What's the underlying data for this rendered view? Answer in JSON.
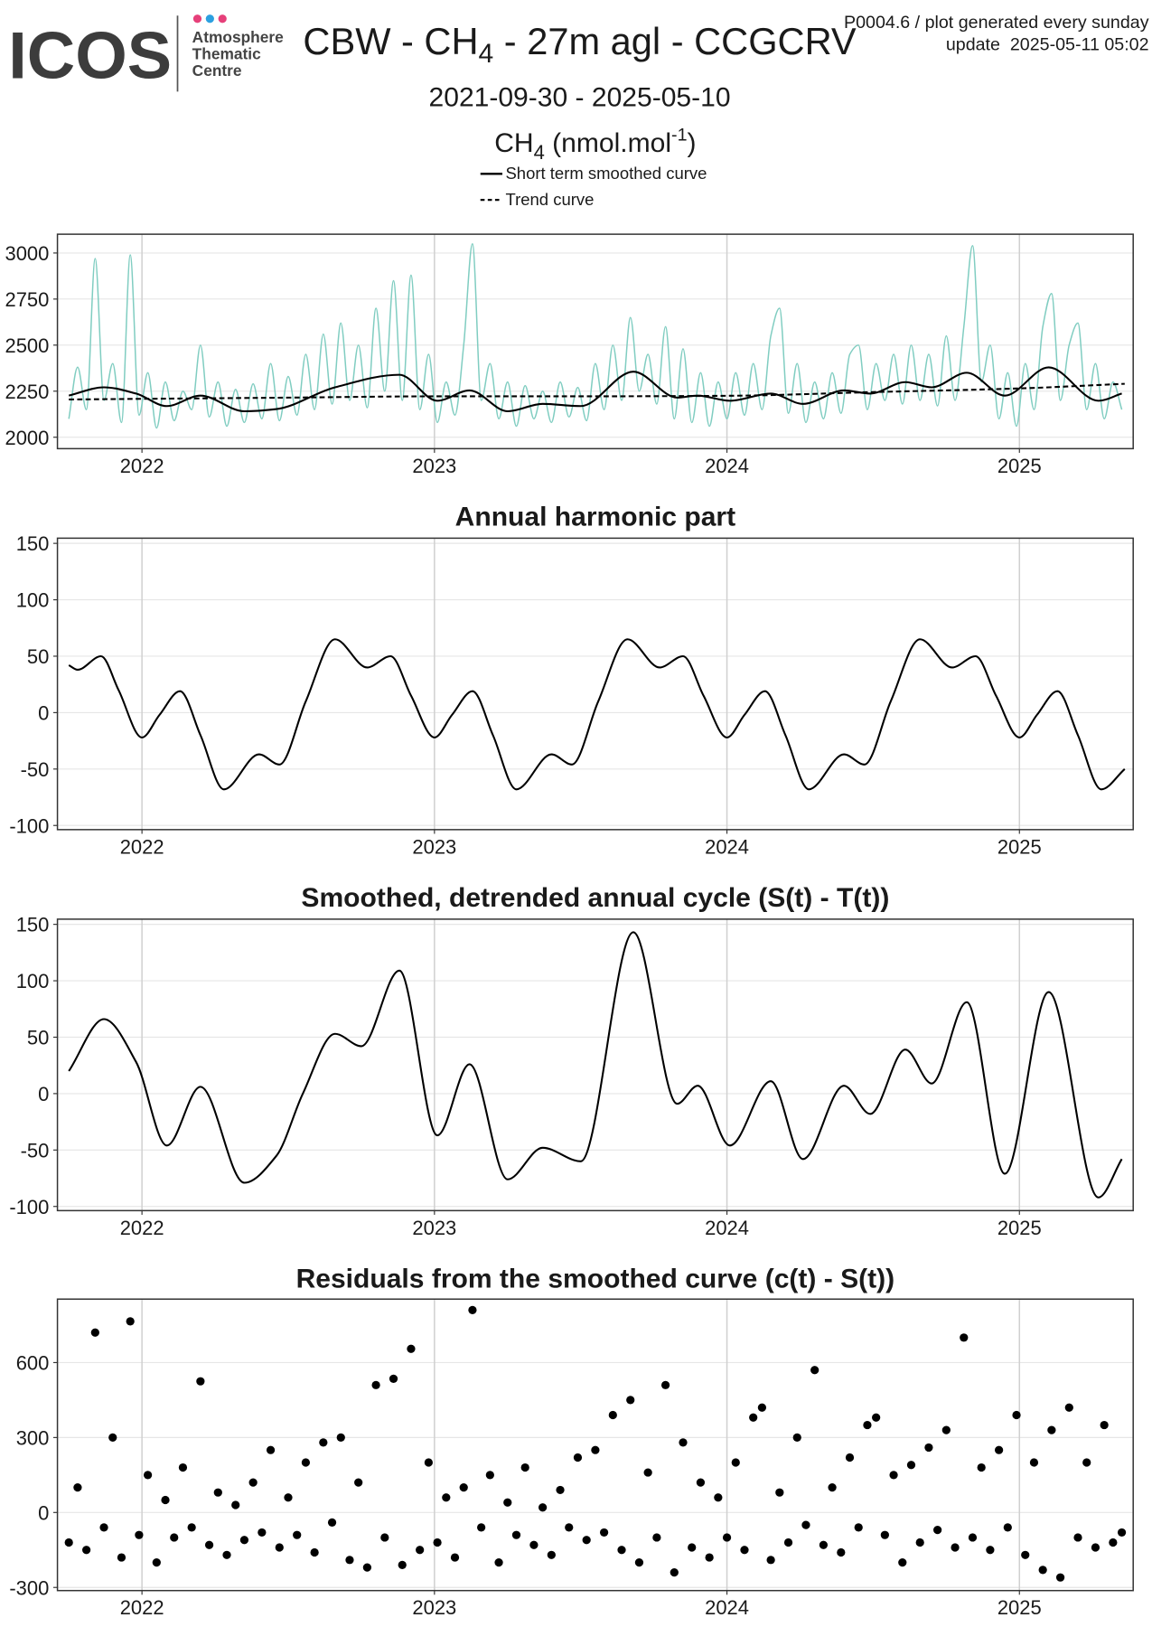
{
  "header": {
    "logo": "ICOS",
    "logo_lines": [
      "Atmosphere",
      "Thematic",
      "Centre"
    ],
    "title_parts": [
      "CBW - CH",
      "4",
      " - 27m agl - CCGCRV"
    ],
    "note": [
      "P0004.6 / plot generated every sunday",
      "update  2025-05-11 05:02"
    ],
    "date_range": "2021-09-30 - 2025-05-10",
    "unit_parts": [
      "CH",
      "4",
      " (nmol.mol",
      "-1",
      ")"
    ]
  },
  "chart_data": [
    {
      "type": "line",
      "grid": true,
      "xlim": [
        2021.711,
        2025.389
      ],
      "ylim": [
        1938,
        3102
      ],
      "xticks": [
        2022,
        2023,
        2024,
        2025
      ],
      "yticks": [
        2000,
        2250,
        2500,
        2750,
        3000
      ],
      "series": [
        {
          "color": "#80cdc1",
          "x": [
            2021.75,
            2021.78,
            2021.81,
            2021.84,
            2021.87,
            2021.9,
            2021.93,
            2021.96,
            2021.99,
            2022.02,
            2022.05,
            2022.08,
            2022.11,
            2022.14,
            2022.17,
            2022.2,
            2022.23,
            2022.26,
            2022.29,
            2022.32,
            2022.35,
            2022.38,
            2022.41,
            2022.44,
            2022.47,
            2022.5,
            2022.53,
            2022.56,
            2022.59,
            2022.62,
            2022.65,
            2022.68,
            2022.71,
            2022.74,
            2022.77,
            2022.8,
            2022.83,
            2022.86,
            2022.89,
            2022.92,
            2022.95,
            2022.98,
            2023.01,
            2023.04,
            2023.07,
            2023.1,
            2023.13,
            2023.16,
            2023.19,
            2023.22,
            2023.25,
            2023.28,
            2023.31,
            2023.34,
            2023.37,
            2023.4,
            2023.43,
            2023.46,
            2023.49,
            2023.52,
            2023.55,
            2023.58,
            2023.61,
            2023.64,
            2023.67,
            2023.7,
            2023.73,
            2023.76,
            2023.79,
            2023.82,
            2023.85,
            2023.88,
            2023.91,
            2023.94,
            2023.97,
            2024.0,
            2024.03,
            2024.06,
            2024.09,
            2024.12,
            2024.15,
            2024.18,
            2024.21,
            2024.24,
            2024.27,
            2024.3,
            2024.33,
            2024.36,
            2024.39,
            2024.42,
            2024.45,
            2024.48,
            2024.51,
            2024.54,
            2024.57,
            2024.6,
            2024.63,
            2024.66,
            2024.69,
            2024.72,
            2024.75,
            2024.78,
            2024.81,
            2024.84,
            2024.87,
            2024.9,
            2024.93,
            2024.96,
            2024.99,
            2025.02,
            2025.05,
            2025.08,
            2025.11,
            2025.14,
            2025.17,
            2025.2,
            2025.23,
            2025.26,
            2025.29,
            2025.32,
            2025.35
          ],
          "values": [
            2100,
            2380,
            2150,
            2970,
            2200,
            2400,
            2080,
            2990,
            2120,
            2350,
            2050,
            2300,
            2090,
            2250,
            2150,
            2500,
            2110,
            2300,
            2060,
            2260,
            2080,
            2290,
            2100,
            2400,
            2090,
            2330,
            2120,
            2450,
            2150,
            2560,
            2180,
            2620,
            2200,
            2500,
            2160,
            2700,
            2250,
            2850,
            2200,
            2880,
            2150,
            2450,
            2080,
            2300,
            2120,
            2500,
            3050,
            2200,
            2400,
            2100,
            2300,
            2060,
            2280,
            2100,
            2250,
            2080,
            2300,
            2110,
            2270,
            2090,
            2400,
            2150,
            2500,
            2200,
            2650,
            2250,
            2450,
            2180,
            2600,
            2100,
            2480,
            2080,
            2350,
            2060,
            2300,
            2100,
            2350,
            2120,
            2400,
            2150,
            2550,
            2700,
            2130,
            2400,
            2080,
            2300,
            2100,
            2350,
            2130,
            2450,
            2500,
            2150,
            2400,
            2200,
            2450,
            2180,
            2500,
            2200,
            2450,
            2170,
            2550,
            2200,
            2600,
            3040,
            2300,
            2500,
            2100,
            2350,
            2060,
            2400,
            2150,
            2600,
            2780,
            2200,
            2500,
            2620,
            2150,
            2400,
            2100,
            2300,
            2150
          ]
        },
        {
          "name": "Short term smoothed curve",
          "color": "#000000",
          "linestyle": "solid",
          "x": [
            2021.75,
            2021.87,
            2021.98,
            2022.085,
            2022.2,
            2022.35,
            2022.46,
            2022.66,
            2022.88,
            2023.01,
            2023.12,
            2023.25,
            2023.37,
            2023.5,
            2023.68,
            2023.83,
            2023.9,
            2024.01,
            2024.15,
            2024.26,
            2024.4,
            2024.49,
            2024.61,
            2024.7,
            2024.82,
            2024.95,
            2025.1,
            2025.27,
            2025.35
          ],
          "values": [
            2226,
            2271,
            2237,
            2169,
            2226,
            2141,
            2153,
            2271,
            2339,
            2198,
            2254,
            2141,
            2181,
            2169,
            2356,
            2215,
            2226,
            2198,
            2237,
            2181,
            2254,
            2237,
            2299,
            2271,
            2350,
            2226,
            2379,
            2198,
            2237
          ]
        },
        {
          "name": "Trend curve",
          "color": "#000000",
          "linestyle": "dashed",
          "x": [
            2021.75,
            2022.5,
            2023.0,
            2023.5,
            2024.0,
            2024.5,
            2025.0,
            2025.36
          ],
          "values": [
            2205,
            2215,
            2222,
            2222,
            2225,
            2245,
            2265,
            2290
          ]
        }
      ]
    },
    {
      "type": "line",
      "title": "Annual harmonic part",
      "grid": true,
      "xlim": [
        2021.711,
        2025.389
      ],
      "ylim": [
        -103.7,
        154.6
      ],
      "xticks": [
        2022,
        2023,
        2024,
        2025
      ],
      "yticks": [
        -100,
        -50,
        0,
        50,
        100,
        150
      ],
      "series": [
        {
          "color": "#000000",
          "linestyle": "solid",
          "x": [
            2021.75,
            2021.78,
            2021.86,
            2021.92,
            2022.0,
            2022.06,
            2022.13,
            2022.2,
            2022.28,
            2022.4,
            2022.47,
            2022.56,
            2022.66,
            2022.77,
            2022.85,
            2022.92,
            2023.0,
            2023.06,
            2023.13,
            2023.2,
            2023.28,
            2023.4,
            2023.47,
            2023.56,
            2023.66,
            2023.77,
            2023.85,
            2023.92,
            2024.0,
            2024.06,
            2024.13,
            2024.2,
            2024.28,
            2024.4,
            2024.47,
            2024.56,
            2024.66,
            2024.77,
            2024.85,
            2024.92,
            2025.0,
            2025.06,
            2025.13,
            2025.2,
            2025.28,
            2025.36
          ],
          "values": [
            42,
            38,
            50,
            20,
            -22,
            -2,
            19,
            -20,
            -68,
            -37,
            -46,
            10,
            65,
            40,
            50,
            15,
            -22,
            -2,
            19,
            -20,
            -68,
            -37,
            -46,
            10,
            65,
            40,
            50,
            15,
            -22,
            -2,
            19,
            -20,
            -68,
            -37,
            -46,
            10,
            65,
            40,
            50,
            15,
            -22,
            -2,
            19,
            -20,
            -68,
            -50
          ]
        }
      ]
    },
    {
      "type": "line",
      "title": "Smoothed, detrended annual cycle (S(t) - T(t))",
      "grid": true,
      "xlim": [
        2021.711,
        2025.389
      ],
      "ylim": [
        -103.7,
        154.6
      ],
      "xticks": [
        2022,
        2023,
        2024,
        2025
      ],
      "yticks": [
        -100,
        -50,
        0,
        50,
        100,
        150
      ],
      "series": [
        {
          "color": "#000000",
          "linestyle": "solid",
          "x": [
            2021.75,
            2021.87,
            2021.98,
            2022.085,
            2022.2,
            2022.35,
            2022.46,
            2022.55,
            2022.66,
            2022.75,
            2022.88,
            2023.01,
            2023.12,
            2023.25,
            2023.37,
            2023.5,
            2023.68,
            2023.83,
            2023.9,
            2024.01,
            2024.15,
            2024.26,
            2024.4,
            2024.49,
            2024.61,
            2024.7,
            2024.82,
            2024.95,
            2025.1,
            2025.27,
            2025.35
          ],
          "values": [
            20,
            66,
            28,
            -46,
            6,
            -79,
            -55,
            0,
            53,
            42,
            109,
            -37,
            26,
            -76,
            -48,
            -60,
            143,
            -9,
            7,
            -46,
            11,
            -58,
            7,
            -18,
            39,
            9,
            81,
            -71,
            90,
            -92,
            -58
          ]
        }
      ]
    },
    {
      "type": "scatter",
      "title": "Residuals from the smoothed curve (c(t) - S(t))",
      "grid": true,
      "xlim": [
        2021.711,
        2025.389
      ],
      "ylim": [
        -312.5,
        854
      ],
      "xticks": [
        2022,
        2023,
        2024,
        2025
      ],
      "yticks": [
        -300,
        0,
        300,
        600
      ],
      "series": [
        {
          "color": "#000000",
          "x": [
            2021.75,
            2021.78,
            2021.81,
            2021.84,
            2021.87,
            2021.9,
            2021.93,
            2021.96,
            2021.99,
            2022.02,
            2022.05,
            2022.08,
            2022.11,
            2022.14,
            2022.17,
            2022.2,
            2022.23,
            2022.26,
            2022.29,
            2022.32,
            2022.35,
            2022.38,
            2022.41,
            2022.44,
            2022.47,
            2022.5,
            2022.53,
            2022.56,
            2022.59,
            2022.62,
            2022.65,
            2022.68,
            2022.71,
            2022.74,
            2022.77,
            2022.8,
            2022.83,
            2022.86,
            2022.89,
            2022.92,
            2022.95,
            2022.98,
            2023.01,
            2023.04,
            2023.07,
            2023.1,
            2023.13,
            2023.16,
            2023.19,
            2023.22,
            2023.25,
            2023.28,
            2023.31,
            2023.34,
            2023.37,
            2023.4,
            2023.43,
            2023.46,
            2023.49,
            2023.52,
            2023.55,
            2023.58,
            2023.61,
            2023.64,
            2023.67,
            2023.7,
            2023.73,
            2023.76,
            2023.79,
            2023.82,
            2023.85,
            2023.88,
            2023.91,
            2023.94,
            2023.97,
            2024.0,
            2024.03,
            2024.06,
            2024.09,
            2024.12,
            2024.15,
            2024.18,
            2024.21,
            2024.24,
            2024.27,
            2024.3,
            2024.33,
            2024.36,
            2024.39,
            2024.42,
            2024.45,
            2024.48,
            2024.51,
            2024.54,
            2024.57,
            2024.6,
            2024.63,
            2024.66,
            2024.69,
            2024.72,
            2024.75,
            2024.78,
            2024.81,
            2024.84,
            2024.87,
            2024.9,
            2024.93,
            2024.96,
            2024.99,
            2025.02,
            2025.05,
            2025.08,
            2025.11,
            2025.14,
            2025.17,
            2025.2,
            2025.23,
            2025.26,
            2025.29,
            2025.32,
            2025.35
          ],
          "values": [
            -120,
            100,
            -150,
            720,
            -60,
            300,
            -180,
            765,
            -90,
            150,
            -200,
            50,
            -100,
            180,
            -60,
            525,
            -130,
            80,
            -170,
            30,
            -110,
            120,
            -80,
            250,
            -140,
            60,
            -90,
            200,
            -160,
            280,
            -40,
            300,
            -190,
            120,
            -220,
            510,
            -100,
            535,
            -210,
            655,
            -150,
            200,
            -120,
            60,
            -180,
            100,
            810,
            -60,
            150,
            -200,
            40,
            -90,
            180,
            -130,
            20,
            -170,
            90,
            -60,
            220,
            -110,
            250,
            -80,
            390,
            -150,
            450,
            -200,
            160,
            -100,
            510,
            -240,
            280,
            -140,
            120,
            -180,
            60,
            -100,
            200,
            -150,
            380,
            420,
            -190,
            80,
            -120,
            300,
            -50,
            570,
            -130,
            100,
            -160,
            220,
            -60,
            350,
            380,
            -90,
            150,
            -200,
            190,
            -120,
            260,
            -70,
            330,
            -140,
            700,
            -100,
            180,
            -150,
            250,
            -60,
            390,
            -170,
            200,
            -230,
            330,
            -260,
            420,
            -100,
            200,
            -140,
            350,
            -120,
            -80
          ]
        }
      ]
    }
  ]
}
